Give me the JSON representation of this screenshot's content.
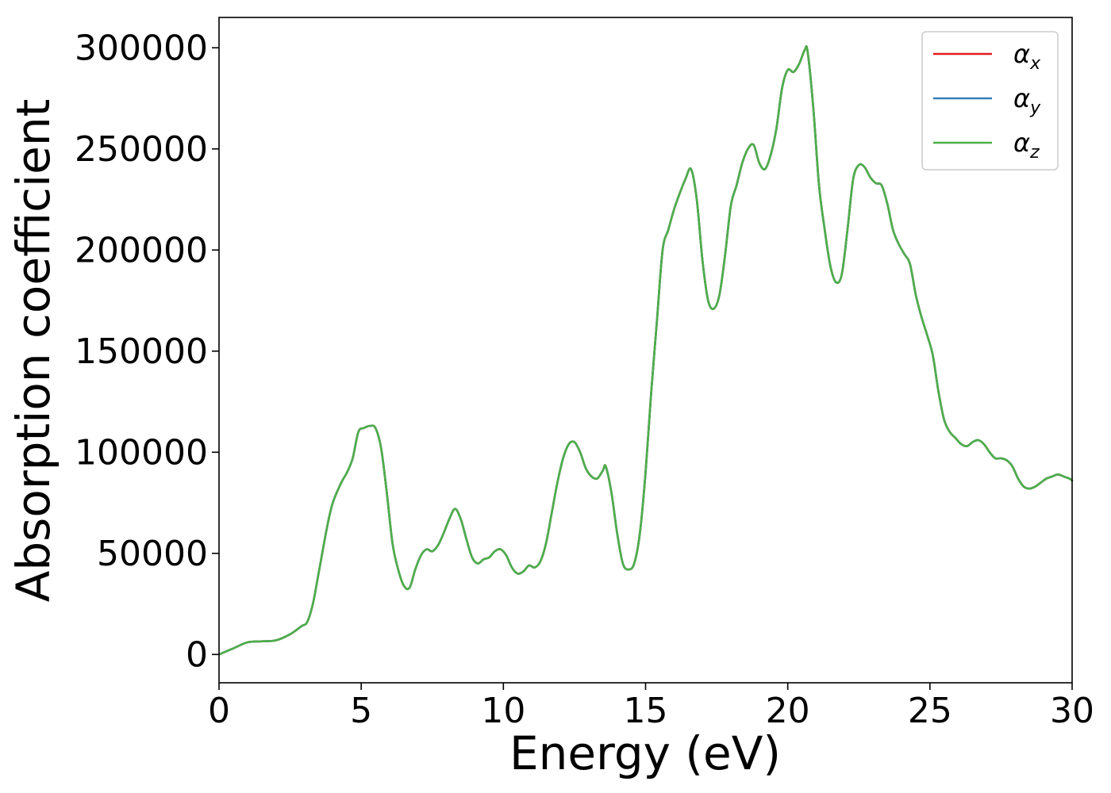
{
  "chart_data": {
    "type": "line",
    "xlabel": "Energy (eV)",
    "ylabel": "Absorption coefficient",
    "xlim": [
      0,
      30
    ],
    "ylim": [
      -14000,
      315000
    ],
    "xticks": [
      "0",
      "5",
      "10",
      "15",
      "20",
      "25",
      "30"
    ],
    "yticks": [
      "0",
      "50000",
      "100000",
      "150000",
      "200000",
      "250000",
      "300000"
    ],
    "grid": false,
    "legend_position": "top-right",
    "series": [
      {
        "name": "α",
        "subscript": "x",
        "color": "#e41a1c",
        "x": [
          0,
          0.5,
          1,
          1.5,
          2,
          2.5,
          2.9,
          3.1,
          3.3,
          3.5,
          3.8,
          4.0,
          4.3,
          4.5,
          4.7,
          4.9,
          5.1,
          5.3,
          5.5,
          5.7,
          5.9,
          6.1,
          6.3,
          6.5,
          6.7,
          6.9,
          7.1,
          7.3,
          7.5,
          7.7,
          7.9,
          8.1,
          8.3,
          8.5,
          8.7,
          8.9,
          9.1,
          9.3,
          9.5,
          9.7,
          9.9,
          10.1,
          10.3,
          10.5,
          10.7,
          10.9,
          11.1,
          11.3,
          11.5,
          11.7,
          11.9,
          12.1,
          12.3,
          12.5,
          12.7,
          12.9,
          13.1,
          13.3,
          13.5,
          13.6,
          13.8,
          14.0,
          14.2,
          14.4,
          14.6,
          14.8,
          15.0,
          15.2,
          15.4,
          15.6,
          15.8,
          16.0,
          16.2,
          16.4,
          16.6,
          16.8,
          17.0,
          17.2,
          17.4,
          17.6,
          17.8,
          18.0,
          18.2,
          18.4,
          18.6,
          18.8,
          19.0,
          19.2,
          19.4,
          19.6,
          19.8,
          20.0,
          20.2,
          20.4,
          20.6,
          20.7,
          20.9,
          21.1,
          21.3,
          21.5,
          21.7,
          21.9,
          22.1,
          22.3,
          22.5,
          22.7,
          22.9,
          23.1,
          23.3,
          23.5,
          23.7,
          23.9,
          24.1,
          24.3,
          24.5,
          24.7,
          24.9,
          25.1,
          25.3,
          25.5,
          25.7,
          25.9,
          26.1,
          26.3,
          26.5,
          26.7,
          26.9,
          27.1,
          27.3,
          27.5,
          27.7,
          27.9,
          28.1,
          28.3,
          28.5,
          28.7,
          28.9,
          29.1,
          29.3,
          29.5,
          29.7,
          29.9,
          30.0
        ],
        "y": [
          0,
          3000,
          6000,
          6500,
          7000,
          10000,
          14000,
          16000,
          25000,
          40000,
          63000,
          75000,
          85000,
          90000,
          97000,
          110000,
          112000,
          113000,
          112000,
          102000,
          80000,
          55000,
          42000,
          34000,
          33000,
          42000,
          49000,
          52000,
          51000,
          54000,
          60000,
          67000,
          72000,
          67000,
          57000,
          48000,
          45000,
          47000,
          48000,
          51000,
          52000,
          49000,
          43000,
          40000,
          41000,
          44000,
          43000,
          46000,
          55000,
          70000,
          85000,
          97000,
          104000,
          105000,
          100000,
          92000,
          88000,
          87000,
          91000,
          93000,
          80000,
          60000,
          45000,
          42000,
          45000,
          60000,
          90000,
          130000,
          165000,
          200000,
          210000,
          220000,
          228000,
          235000,
          240000,
          225000,
          195000,
          175000,
          171000,
          178000,
          198000,
          222000,
          232000,
          243000,
          250000,
          252000,
          243000,
          240000,
          247000,
          260000,
          280000,
          289000,
          288000,
          292000,
          299000,
          298000,
          270000,
          232000,
          210000,
          192000,
          184000,
          188000,
          210000,
          235000,
          242000,
          241000,
          236000,
          233000,
          232000,
          223000,
          210000,
          203000,
          198000,
          193000,
          178000,
          167000,
          158000,
          148000,
          130000,
          116000,
          110000,
          107000,
          104000,
          103000,
          105000,
          106000,
          104000,
          100000,
          97000,
          97000,
          96000,
          93000,
          87000,
          83000,
          82000,
          83000,
          85000,
          87000,
          88000,
          89000,
          88000,
          87000,
          86000
        ]
      },
      {
        "name": "α",
        "subscript": "y",
        "color": "#377eb8",
        "x": [
          0,
          0.5,
          1,
          1.5,
          2,
          2.5,
          2.9,
          3.1,
          3.3,
          3.5,
          3.8,
          4.0,
          4.3,
          4.5,
          4.7,
          4.9,
          5.1,
          5.3,
          5.5,
          5.7,
          5.9,
          6.1,
          6.3,
          6.5,
          6.7,
          6.9,
          7.1,
          7.3,
          7.5,
          7.7,
          7.9,
          8.1,
          8.3,
          8.5,
          8.7,
          8.9,
          9.1,
          9.3,
          9.5,
          9.7,
          9.9,
          10.1,
          10.3,
          10.5,
          10.7,
          10.9,
          11.1,
          11.3,
          11.5,
          11.7,
          11.9,
          12.1,
          12.3,
          12.5,
          12.7,
          12.9,
          13.1,
          13.3,
          13.5,
          13.6,
          13.8,
          14.0,
          14.2,
          14.4,
          14.6,
          14.8,
          15.0,
          15.2,
          15.4,
          15.6,
          15.8,
          16.0,
          16.2,
          16.4,
          16.6,
          16.8,
          17.0,
          17.2,
          17.4,
          17.6,
          17.8,
          18.0,
          18.2,
          18.4,
          18.6,
          18.8,
          19.0,
          19.2,
          19.4,
          19.6,
          19.8,
          20.0,
          20.2,
          20.4,
          20.6,
          20.7,
          20.9,
          21.1,
          21.3,
          21.5,
          21.7,
          21.9,
          22.1,
          22.3,
          22.5,
          22.7,
          22.9,
          23.1,
          23.3,
          23.5,
          23.7,
          23.9,
          24.1,
          24.3,
          24.5,
          24.7,
          24.9,
          25.1,
          25.3,
          25.5,
          25.7,
          25.9,
          26.1,
          26.3,
          26.5,
          26.7,
          26.9,
          27.1,
          27.3,
          27.5,
          27.7,
          27.9,
          28.1,
          28.3,
          28.5,
          28.7,
          28.9,
          29.1,
          29.3,
          29.5,
          29.7,
          29.9,
          30.0
        ],
        "y": [
          0,
          3000,
          6000,
          6500,
          7000,
          10000,
          14000,
          16000,
          25000,
          40000,
          63000,
          75000,
          85000,
          90000,
          97000,
          110000,
          112000,
          113000,
          112000,
          102000,
          80000,
          55000,
          42000,
          34000,
          33000,
          42000,
          49000,
          52000,
          51000,
          54000,
          60000,
          67000,
          72000,
          67000,
          57000,
          48000,
          45000,
          47000,
          48000,
          51000,
          52000,
          49000,
          43000,
          40000,
          41000,
          44000,
          43000,
          46000,
          55000,
          70000,
          85000,
          97000,
          104000,
          105000,
          100000,
          92000,
          88000,
          87000,
          91000,
          93000,
          80000,
          60000,
          45000,
          42000,
          45000,
          60000,
          90000,
          130000,
          165000,
          200000,
          210000,
          220000,
          228000,
          235000,
          240000,
          225000,
          195000,
          175000,
          171000,
          178000,
          198000,
          222000,
          232000,
          243000,
          250000,
          252000,
          243000,
          240000,
          247000,
          260000,
          280000,
          289000,
          288000,
          292000,
          299000,
          298000,
          270000,
          232000,
          210000,
          192000,
          184000,
          188000,
          210000,
          235000,
          242000,
          241000,
          236000,
          233000,
          232000,
          223000,
          210000,
          203000,
          198000,
          193000,
          178000,
          167000,
          158000,
          148000,
          130000,
          116000,
          110000,
          107000,
          104000,
          103000,
          105000,
          106000,
          104000,
          100000,
          97000,
          97000,
          96000,
          93000,
          87000,
          83000,
          82000,
          83000,
          85000,
          87000,
          88000,
          89000,
          88000,
          87000,
          86000
        ]
      },
      {
        "name": "α",
        "subscript": "z",
        "color": "#4daf4a",
        "x": [
          0,
          0.5,
          1,
          1.5,
          2,
          2.5,
          2.9,
          3.1,
          3.3,
          3.5,
          3.8,
          4.0,
          4.3,
          4.5,
          4.7,
          4.9,
          5.1,
          5.3,
          5.5,
          5.7,
          5.9,
          6.1,
          6.3,
          6.5,
          6.7,
          6.9,
          7.1,
          7.3,
          7.5,
          7.7,
          7.9,
          8.1,
          8.3,
          8.5,
          8.7,
          8.9,
          9.1,
          9.3,
          9.5,
          9.7,
          9.9,
          10.1,
          10.3,
          10.5,
          10.7,
          10.9,
          11.1,
          11.3,
          11.5,
          11.7,
          11.9,
          12.1,
          12.3,
          12.5,
          12.7,
          12.9,
          13.1,
          13.3,
          13.5,
          13.6,
          13.8,
          14.0,
          14.2,
          14.4,
          14.6,
          14.8,
          15.0,
          15.2,
          15.4,
          15.6,
          15.8,
          16.0,
          16.2,
          16.4,
          16.6,
          16.8,
          17.0,
          17.2,
          17.4,
          17.6,
          17.8,
          18.0,
          18.2,
          18.4,
          18.6,
          18.8,
          19.0,
          19.2,
          19.4,
          19.6,
          19.8,
          20.0,
          20.2,
          20.4,
          20.6,
          20.7,
          20.9,
          21.1,
          21.3,
          21.5,
          21.7,
          21.9,
          22.1,
          22.3,
          22.5,
          22.7,
          22.9,
          23.1,
          23.3,
          23.5,
          23.7,
          23.9,
          24.1,
          24.3,
          24.5,
          24.7,
          24.9,
          25.1,
          25.3,
          25.5,
          25.7,
          25.9,
          26.1,
          26.3,
          26.5,
          26.7,
          26.9,
          27.1,
          27.3,
          27.5,
          27.7,
          27.9,
          28.1,
          28.3,
          28.5,
          28.7,
          28.9,
          29.1,
          29.3,
          29.5,
          29.7,
          29.9,
          30.0
        ],
        "y": [
          0,
          3000,
          6000,
          6500,
          7000,
          10000,
          14000,
          16000,
          25000,
          40000,
          63000,
          75000,
          85000,
          90000,
          97000,
          110000,
          112000,
          113000,
          112000,
          102000,
          80000,
          55000,
          42000,
          34000,
          33000,
          42000,
          49000,
          52000,
          51000,
          54000,
          60000,
          67000,
          72000,
          67000,
          57000,
          48000,
          45000,
          47000,
          48000,
          51000,
          52000,
          49000,
          43000,
          40000,
          41000,
          44000,
          43000,
          46000,
          55000,
          70000,
          85000,
          97000,
          104000,
          105000,
          100000,
          92000,
          88000,
          87000,
          91000,
          93000,
          80000,
          60000,
          45000,
          42000,
          45000,
          60000,
          90000,
          130000,
          165000,
          200000,
          210000,
          220000,
          228000,
          235000,
          240000,
          225000,
          195000,
          175000,
          171000,
          178000,
          198000,
          222000,
          232000,
          243000,
          250000,
          252000,
          243000,
          240000,
          247000,
          260000,
          280000,
          289000,
          288000,
          292000,
          299000,
          298000,
          270000,
          232000,
          210000,
          192000,
          184000,
          188000,
          210000,
          235000,
          242000,
          241000,
          236000,
          233000,
          232000,
          223000,
          210000,
          203000,
          198000,
          193000,
          178000,
          167000,
          158000,
          148000,
          130000,
          116000,
          110000,
          107000,
          104000,
          103000,
          105000,
          106000,
          104000,
          100000,
          97000,
          97000,
          96000,
          93000,
          87000,
          83000,
          82000,
          83000,
          85000,
          87000,
          88000,
          89000,
          88000,
          87000,
          86000
        ]
      }
    ]
  }
}
